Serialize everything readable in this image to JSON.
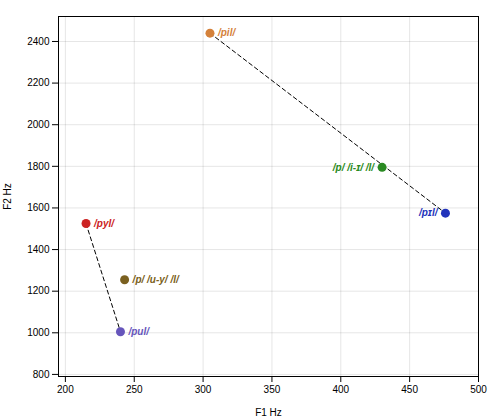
{
  "chart_data": {
    "type": "scatter",
    "x": [
      305,
      215,
      243,
      240,
      430,
      476
    ],
    "values": [
      2440,
      1525,
      1255,
      1005,
      1795,
      1575
    ],
    "annotations": [
      "/pil/",
      "/pyl/",
      "/p/ /u-y/ /l/",
      "/pul/",
      "/p/ /i-ɪ/ /l/",
      "/pɪl/"
    ],
    "colors": [
      "#d4813a",
      "#cc2222",
      "#7a6020",
      "#6655bb",
      "#2a8a22",
      "#2233bb"
    ],
    "lines": [
      {
        "x": [
          305,
          476
        ],
        "y": [
          2440,
          1575
        ],
        "color": "black",
        "line_style": "dashed"
      },
      {
        "x": [
          215,
          240
        ],
        "y": [
          1525,
          1005
        ],
        "color": "black",
        "line_style": "dashed"
      }
    ],
    "xlim": [
      195,
      500
    ],
    "ylim": [
      790,
      2520
    ],
    "xticks": [
      200,
      250,
      300,
      350,
      400,
      450,
      500
    ],
    "yticks": [
      800,
      1000,
      1200,
      1400,
      1600,
      1800,
      2000,
      2200,
      2400
    ],
    "xlabel": "F1 Hz",
    "ylabel": "F2 Hz",
    "grid": true
  }
}
